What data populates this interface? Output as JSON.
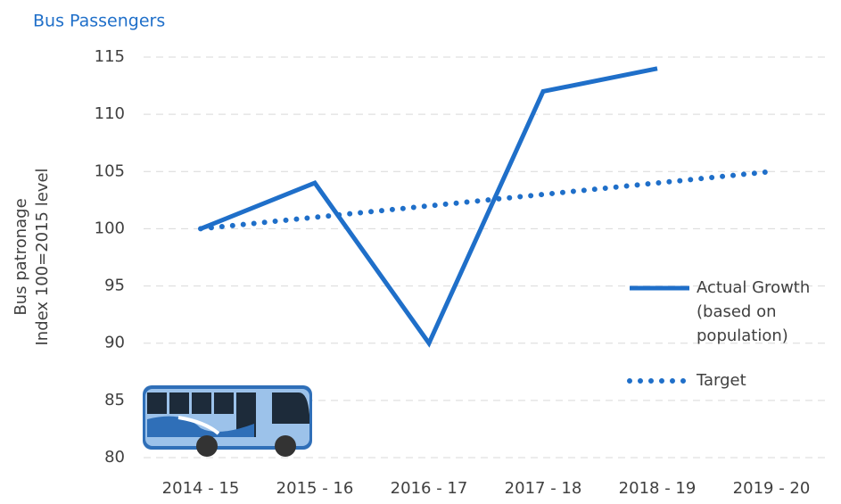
{
  "chart_data": {
    "type": "line",
    "title": "Bus Passengers",
    "ylabel": [
      "Bus patronage",
      "Index 100=2015 level"
    ],
    "categories": [
      "2014 - 15",
      "2015 - 16",
      "2016 - 17",
      "2017 - 18",
      "2018 - 19",
      "2019 - 20"
    ],
    "series": [
      {
        "name": "Actual Growth (based on population)",
        "color": "#1f6fc9",
        "style": "solid",
        "values": [
          100,
          104,
          90,
          112,
          114,
          null
        ]
      },
      {
        "name": "Target",
        "color": "#1f6fc9",
        "style": "dotted",
        "values": [
          100,
          101,
          102,
          103,
          104,
          105
        ]
      }
    ],
    "ylim": [
      80,
      115
    ],
    "yticks": [
      80,
      85,
      90,
      95,
      100,
      105,
      110,
      115
    ],
    "grid": true
  }
}
